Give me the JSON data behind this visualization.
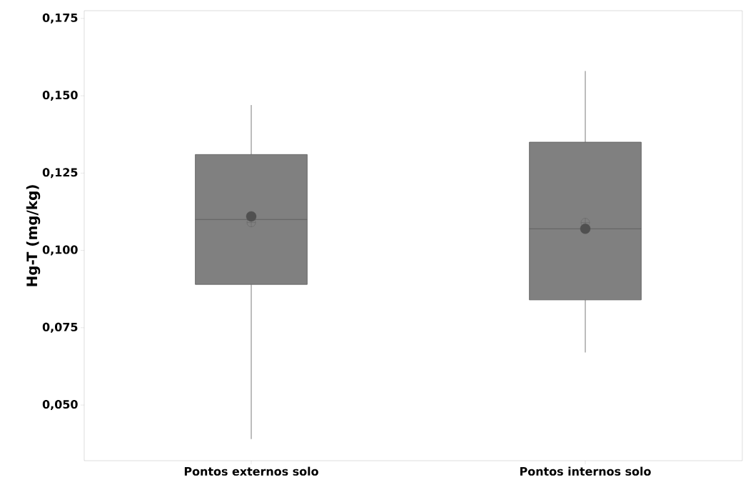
{
  "chart_data": {
    "type": "box",
    "ylabel": "Hg-T (mg/kg)",
    "categories": [
      "Pontos externos solo",
      "Pontos internos solo"
    ],
    "ylim": [
      0.032,
      0.1775
    ],
    "yticks": [
      {
        "value": 0.05,
        "label": "0,050"
      },
      {
        "value": 0.075,
        "label": "0,075"
      },
      {
        "value": 0.1,
        "label": "0,100"
      },
      {
        "value": 0.125,
        "label": "0,125"
      },
      {
        "value": 0.15,
        "label": "0,150"
      },
      {
        "value": 0.175,
        "label": "0,175"
      }
    ],
    "color": "#808080",
    "boxes": [
      {
        "low": 0.039,
        "q1": 0.089,
        "median": 0.11,
        "q3": 0.131,
        "high": 0.147,
        "mean": 0.109
      },
      {
        "low": 0.067,
        "q1": 0.084,
        "median": 0.107,
        "q3": 0.135,
        "high": 0.158,
        "mean": 0.109
      }
    ],
    "series": [
      {
        "type": "scatter",
        "x": [
          "Pontos externos solo",
          "Pontos internos solo"
        ],
        "values": [
          0.111,
          0.107
        ],
        "color": "#505050",
        "marker": "circle"
      }
    ],
    "grid": false
  }
}
